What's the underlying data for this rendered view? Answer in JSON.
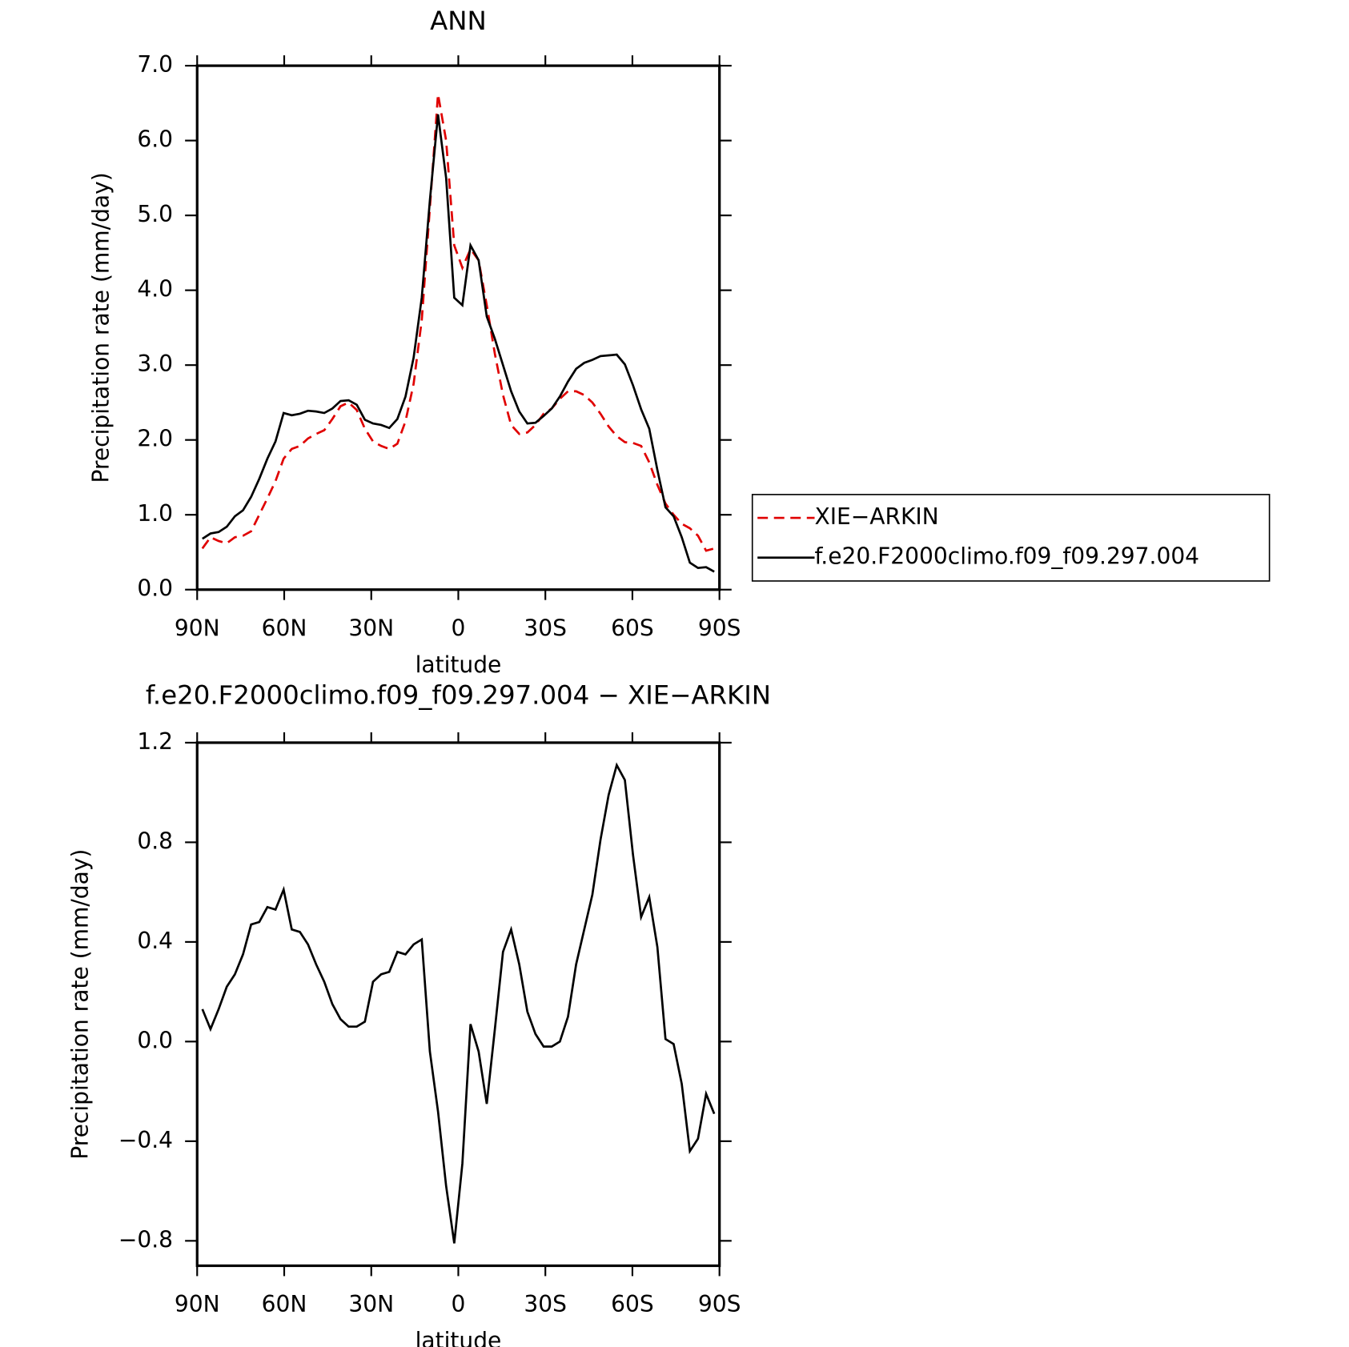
{
  "chart_data": [
    {
      "type": "line",
      "title": "ANN",
      "x_label": "latitude",
      "y_label": "Precipitation rate (mm/day)",
      "x": [
        88.2,
        85.4,
        82.6,
        79.8,
        77,
        74.2,
        71.4,
        68.6,
        65.8,
        63,
        60.2,
        57.4,
        54.6,
        51.8,
        49,
        46.2,
        43.4,
        40.6,
        37.8,
        35,
        32.2,
        29.4,
        26.6,
        23.8,
        21,
        18.2,
        15.4,
        12.6,
        9.8,
        7,
        4.2,
        1.4,
        -1.4,
        -4.2,
        -7,
        -9.8,
        -12.6,
        -15.4,
        -18.2,
        -21,
        -23.8,
        -26.6,
        -29.4,
        -32.2,
        -35,
        -37.8,
        -40.6,
        -43.4,
        -46.2,
        -49,
        -51.8,
        -54.6,
        -57.4,
        -60.2,
        -63,
        -65.8,
        -68.6,
        -71.4,
        -74.2,
        -77,
        -79.8,
        -82.6,
        -85.4,
        -88.2
      ],
      "series": [
        {
          "name": "XIE−ARKIN",
          "color": "#e00000",
          "line_style": "dashed",
          "values": [
            0.55,
            0.7,
            0.65,
            0.62,
            0.7,
            0.72,
            0.78,
            1.0,
            1.22,
            1.45,
            1.75,
            1.88,
            1.92,
            2.02,
            2.08,
            2.13,
            2.28,
            2.45,
            2.5,
            2.4,
            2.15,
            1.98,
            1.92,
            1.88,
            1.95,
            2.25,
            2.75,
            3.6,
            5.1,
            6.62,
            6.0,
            4.6,
            4.3,
            4.55,
            4.4,
            3.8,
            3.15,
            2.6,
            2.2,
            2.08,
            2.1,
            2.2,
            2.35,
            2.42,
            2.55,
            2.65,
            2.65,
            2.6,
            2.5,
            2.35,
            2.18,
            2.05,
            1.97,
            1.96,
            1.92,
            1.7,
            1.4,
            1.15,
            1.0,
            0.88,
            0.82,
            0.72,
            0.52,
            0.55
          ]
        },
        {
          "name": "f.e20.F2000climo.f09_f09.297.004",
          "color": "#000000",
          "line_style": "solid",
          "values": [
            0.68,
            0.75,
            0.77,
            0.84,
            0.98,
            1.06,
            1.24,
            1.48,
            1.75,
            1.98,
            2.36,
            2.33,
            2.35,
            2.39,
            2.38,
            2.36,
            2.42,
            2.52,
            2.53,
            2.47,
            2.27,
            2.22,
            2.2,
            2.16,
            2.28,
            2.58,
            3.1,
            3.9,
            5.2,
            6.35,
            5.5,
            3.9,
            3.8,
            4.6,
            4.4,
            3.65,
            3.35,
            3.0,
            2.65,
            2.38,
            2.22,
            2.23,
            2.32,
            2.42,
            2.58,
            2.78,
            2.95,
            3.03,
            3.07,
            3.12,
            3.13,
            3.14,
            3.01,
            2.73,
            2.41,
            2.15,
            1.6,
            1.1,
            0.98,
            0.7,
            0.36,
            0.29,
            0.3,
            0.24
          ]
        }
      ],
      "xlim": [
        90,
        -90
      ],
      "xticks": [
        {
          "value": 90,
          "label": "90N"
        },
        {
          "value": 60,
          "label": "60N"
        },
        {
          "value": 30,
          "label": "30N"
        },
        0,
        {
          "value": -30,
          "label": "30S"
        },
        {
          "value": -60,
          "label": "60S"
        },
        {
          "value": -90,
          "label": "90S"
        }
      ],
      "ylim": [
        0,
        7
      ],
      "yticks": [
        {
          "value": 0,
          "label": "0.0"
        },
        {
          "value": 1,
          "label": "1.0"
        },
        {
          "value": 2,
          "label": "2.0"
        },
        {
          "value": 3,
          "label": "3.0"
        },
        {
          "value": 4,
          "label": "4.0"
        },
        {
          "value": 5,
          "label": "5.0"
        },
        {
          "value": 6,
          "label": "6.0"
        },
        {
          "value": 7,
          "label": "7.0"
        }
      ],
      "legend": "right"
    },
    {
      "type": "line",
      "title": "f.e20.F2000climo.f09_f09.297.004 − XIE−ARKIN",
      "x_label": "latitude",
      "y_label": "Precipitation rate (mm/day)",
      "x": [
        88.2,
        85.4,
        82.6,
        79.8,
        77,
        74.2,
        71.4,
        68.6,
        65.8,
        63,
        60.2,
        57.4,
        54.6,
        51.8,
        49,
        46.2,
        43.4,
        40.6,
        37.8,
        35,
        32.2,
        29.4,
        26.6,
        23.8,
        21,
        18.2,
        15.4,
        12.6,
        9.8,
        7,
        4.2,
        1.4,
        -1.4,
        -4.2,
        -7,
        -9.8,
        -12.6,
        -15.4,
        -18.2,
        -21,
        -23.8,
        -26.6,
        -29.4,
        -32.2,
        -35,
        -37.8,
        -40.6,
        -43.4,
        -46.2,
        -49,
        -51.8,
        -54.6,
        -57.4,
        -60.2,
        -63,
        -65.8,
        -68.6,
        -71.4,
        -74.2,
        -77,
        -79.8,
        -82.6,
        -85.4,
        -88.2
      ],
      "series": [
        {
          "color": "#000000",
          "line_style": "solid",
          "values": [
            0.13,
            0.05,
            0.13,
            0.22,
            0.27,
            0.35,
            0.47,
            0.48,
            0.54,
            0.53,
            0.61,
            0.45,
            0.44,
            0.39,
            0.31,
            0.24,
            0.15,
            0.09,
            0.06,
            0.06,
            0.08,
            0.24,
            0.27,
            0.28,
            0.36,
            0.35,
            0.39,
            0.41,
            -0.04,
            -0.28,
            -0.58,
            -0.81,
            -0.49,
            0.07,
            -0.04,
            -0.25,
            0.05,
            0.36,
            0.45,
            0.31,
            0.12,
            0.03,
            -0.02,
            -0.02,
            0.0,
            0.1,
            0.31,
            0.45,
            0.59,
            0.81,
            0.99,
            1.11,
            1.05,
            0.75,
            0.5,
            0.58,
            0.38,
            0.01,
            -0.01,
            -0.17,
            -0.44,
            -0.39,
            -0.21,
            -0.29
          ]
        }
      ],
      "xlim": [
        90,
        -90
      ],
      "xticks": [
        {
          "value": 90,
          "label": "90N"
        },
        {
          "value": 60,
          "label": "60N"
        },
        {
          "value": 30,
          "label": "30N"
        },
        0,
        {
          "value": -30,
          "label": "30S"
        },
        {
          "value": -60,
          "label": "60S"
        },
        {
          "value": -90,
          "label": "90S"
        }
      ],
      "ylim": [
        -0.9,
        1.2
      ],
      "yticks": [
        {
          "value": -0.8,
          "label": "−0.8"
        },
        {
          "value": -0.4,
          "label": "−0.4"
        },
        {
          "value": 0,
          "label": "0.0"
        },
        0.4,
        0.8,
        1.2
      ]
    }
  ]
}
